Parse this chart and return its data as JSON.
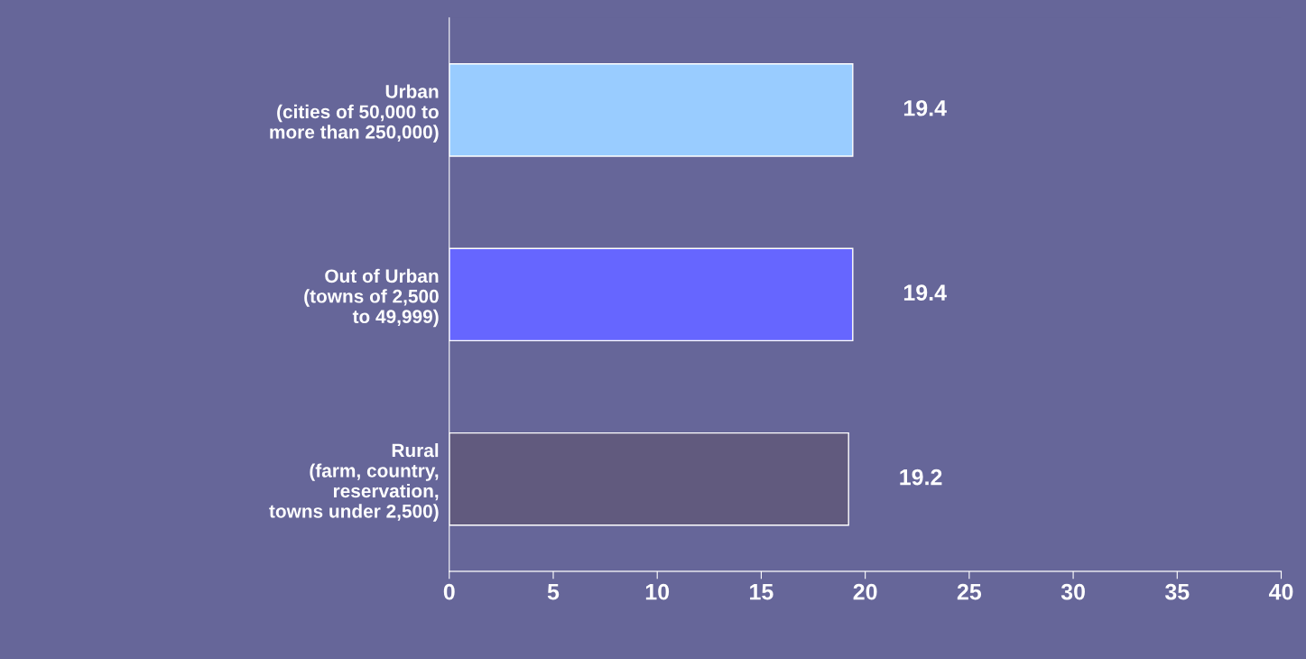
{
  "chart_data": {
    "type": "bar",
    "orientation": "horizontal",
    "categories": [
      "Urban\n(cities of 50,000 to\nmore than 250,000)",
      "Out of Urban\n(towns of 2,500\nto 49,999)",
      "Rural\n(farm, country,\nreservation,\ntowns under 2,500)"
    ],
    "values": [
      19.4,
      19.4,
      19.2
    ],
    "colors": [
      "#99ccff",
      "#6666ff",
      "#615a7e"
    ],
    "xlim": [
      0,
      40
    ],
    "xticks": [
      0,
      5,
      10,
      15,
      20,
      25,
      30,
      35,
      40
    ],
    "data_labels": true,
    "grid": false,
    "legend": false
  }
}
